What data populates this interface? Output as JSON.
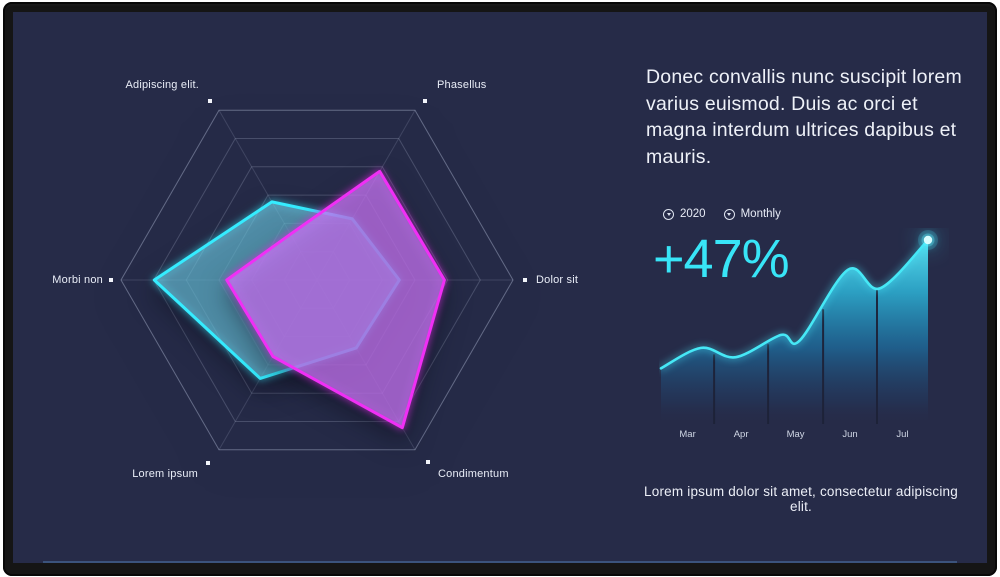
{
  "screen": {
    "heading": "Donec convallis nunc suscipit lorem varius euismod. Duis ac orci et magna interdum ultrices dapibus et mauris.",
    "caption": "Lorem ipsum dolor sit amet, consectetur adipiscing elit."
  },
  "controls": {
    "year": {
      "label": "2020",
      "icon": "dropdown-circle-icon"
    },
    "period": {
      "label": "Monthly",
      "icon": "dropdown-circle-icon"
    }
  },
  "stat": {
    "value": "+47%",
    "color": "#38e5f7"
  },
  "colors": {
    "screen_bg": "#262b48",
    "cyan_accent": "#35ecff",
    "magenta_accent": "#f02ff5",
    "text": "#eef1f8"
  },
  "chart_data": [
    {
      "type": "radar",
      "axes": [
        "Dolor sit",
        "Phasellus",
        "Adipiscing elit.",
        "Morbi non",
        "Lorem ipsum",
        "Condimentum"
      ],
      "max": 100,
      "grid_levels": 6,
      "grid": "hexagonal, 6 concentric levels with radial spokes",
      "series": [
        {
          "name": "cyan-series",
          "color": "#35ecff",
          "values": [
            42,
            36,
            46,
            83,
            58,
            40
          ]
        },
        {
          "name": "magenta-series",
          "color": "#f02ff5",
          "values": [
            65,
            64,
            27,
            46,
            45,
            87
          ]
        }
      ]
    },
    {
      "type": "area",
      "title": "+47%",
      "categories": [
        "Mar",
        "Apr",
        "May",
        "Jun",
        "Jul"
      ],
      "values": [
        38,
        38,
        47,
        83,
        86
      ],
      "curve": [
        [
          0,
          31
        ],
        [
          15,
          42
        ],
        [
          28,
          37
        ],
        [
          45,
          49
        ],
        [
          52,
          46
        ],
        [
          70,
          84
        ],
        [
          82,
          74
        ],
        [
          100,
          100
        ]
      ],
      "dividers_pct": [
        19.9,
        40.1,
        60.7,
        80.9
      ],
      "ylim": [
        0,
        100
      ],
      "endpoint_marker": "glowing dot at last point",
      "legend_position": "top-left above chart"
    }
  ]
}
